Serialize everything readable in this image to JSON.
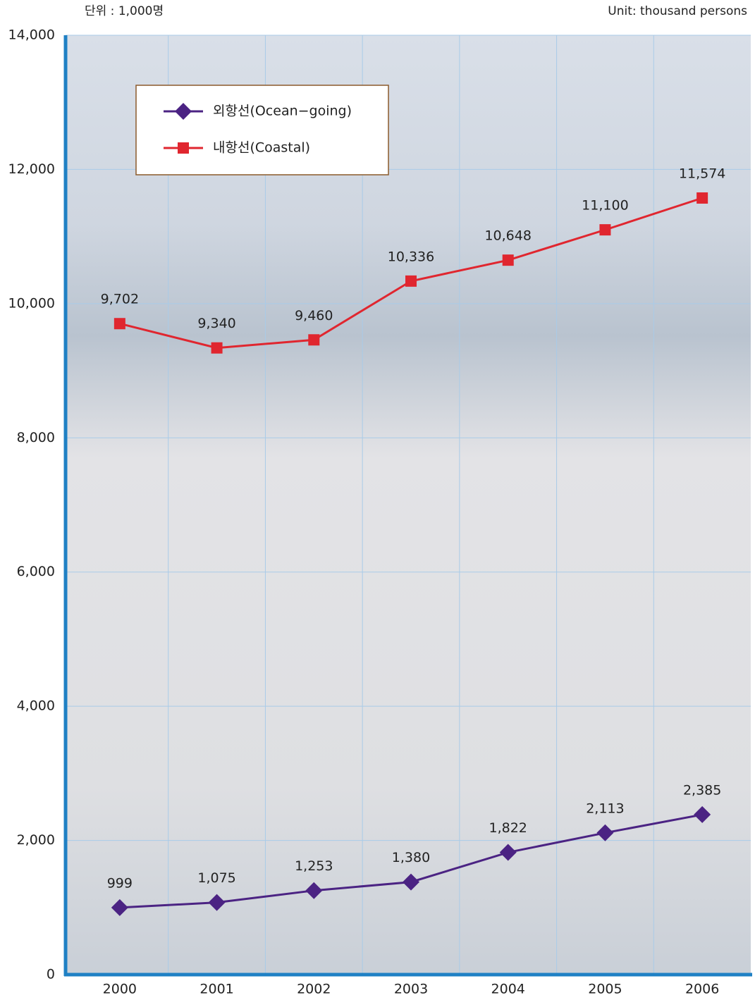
{
  "chart_data": {
    "type": "line",
    "unit_ko": "단위 : 1,000명",
    "unit_en": "Unit: thousand persons",
    "categories": [
      "2000",
      "2001",
      "2002",
      "2003",
      "2004",
      "2005",
      "2006"
    ],
    "series": [
      {
        "name": "외항선(Ocean−going)",
        "color": "#4b2383",
        "marker": "diamond",
        "values": [
          999,
          1075,
          1253,
          1380,
          1822,
          2113,
          2385
        ],
        "value_labels": [
          "999",
          "1,075",
          "1,253",
          "1,380",
          "1,822",
          "2,113",
          "2,385"
        ]
      },
      {
        "name": "내항선(Coastal)",
        "color": "#e0262f",
        "marker": "square",
        "values": [
          9702,
          9340,
          9460,
          10336,
          10648,
          11100,
          11574
        ],
        "value_labels": [
          "9,702",
          "9,340",
          "9,460",
          "10,336",
          "10,648",
          "11,100",
          "11,574"
        ]
      }
    ],
    "ylim": [
      0,
      14000
    ],
    "yticks": [
      0,
      {
        "value": 2000,
        "label": "2,000"
      },
      {
        "value": 4000,
        "label": "4,000"
      },
      {
        "value": 6000,
        "label": "6,000"
      },
      {
        "value": 8000,
        "label": "8,000"
      },
      {
        "value": 10000,
        "label": "10,000"
      },
      {
        "value": 12000,
        "label": "12,000"
      },
      {
        "value": 14000,
        "label": "14,000"
      }
    ],
    "grid": true
  }
}
